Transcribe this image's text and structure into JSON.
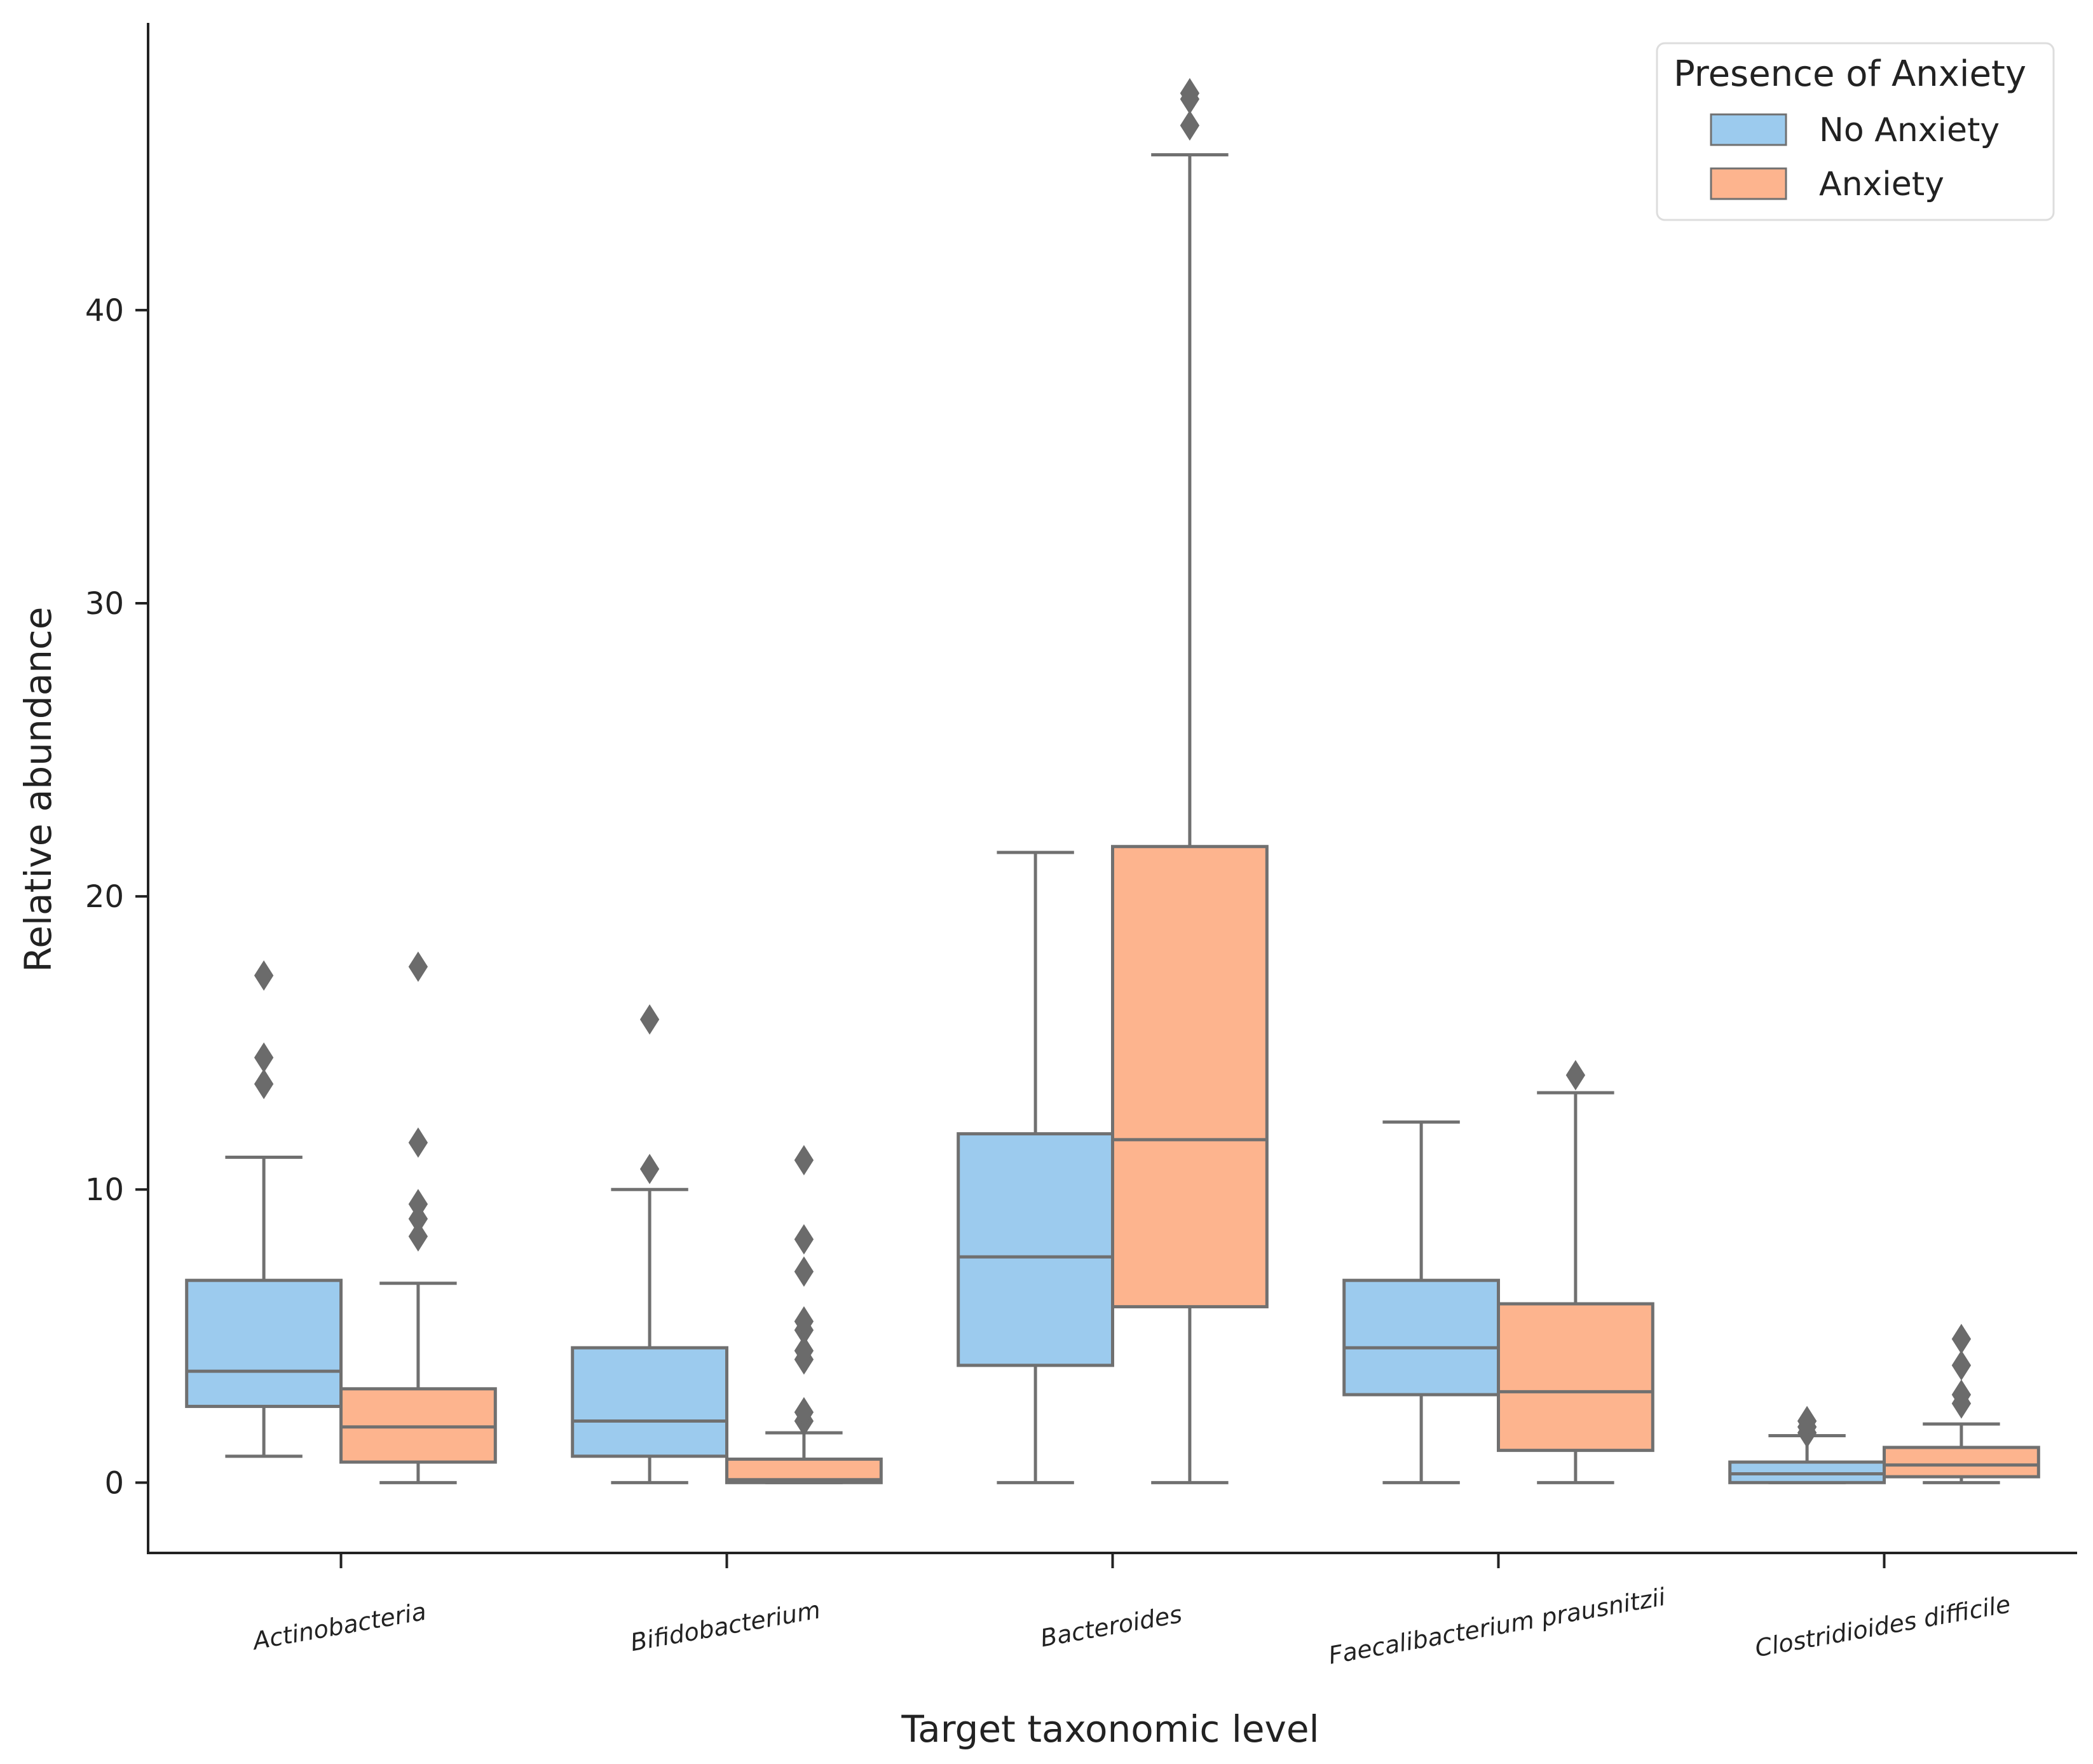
{
  "chart_data": {
    "type": "boxplot",
    "title": "",
    "xlabel": "Target taxonomic level",
    "ylabel": "Relative abundance",
    "ylim": [
      -2.4,
      49.8
    ],
    "yticks": [
      0,
      10,
      20,
      30,
      40
    ],
    "categories": [
      "Actinobacteria",
      "Bifidobacterium",
      "Bacteroides",
      "Faecalibacterium prausnitzii",
      "Clostridioides difficile"
    ],
    "legend": {
      "title": "Presence of Anxiety",
      "placement": "top-right"
    },
    "series": [
      {
        "name": "No Anxiety",
        "color": "#9ccbee",
        "boxes": [
          {
            "whisker_low": 0.9,
            "q1": 2.6,
            "median": 3.8,
            "q3": 6.9,
            "whisker_high": 11.1,
            "outliers": [
              13.6,
              14.5,
              17.3
            ]
          },
          {
            "whisker_low": 0.0,
            "q1": 0.9,
            "median": 2.1,
            "q3": 4.6,
            "whisker_high": 10.0,
            "outliers": [
              10.7,
              15.8
            ]
          },
          {
            "whisker_low": 0.0,
            "q1": 4.0,
            "median": 7.7,
            "q3": 11.9,
            "whisker_high": 21.5,
            "outliers": []
          },
          {
            "whisker_low": 0.0,
            "q1": 3.0,
            "median": 4.6,
            "q3": 6.9,
            "whisker_high": 12.3,
            "outliers": []
          },
          {
            "whisker_low": 0.0,
            "q1": 0.0,
            "median": 0.3,
            "q3": 0.7,
            "whisker_high": 1.6,
            "outliers": [
              1.7,
              1.9,
              2.1
            ]
          }
        ]
      },
      {
        "name": "Anxiety",
        "color": "#fdb48e",
        "boxes": [
          {
            "whisker_low": 0.0,
            "q1": 0.7,
            "median": 1.9,
            "q3": 3.2,
            "whisker_high": 6.8,
            "outliers": [
              8.4,
              9.0,
              9.5,
              11.6,
              17.6
            ]
          },
          {
            "whisker_low": 0.0,
            "q1": 0.0,
            "median": 0.1,
            "q3": 0.8,
            "whisker_high": 1.7,
            "outliers": [
              2.1,
              2.4,
              4.2,
              4.5,
              5.2,
              5.5,
              7.2,
              8.3,
              11.0
            ]
          },
          {
            "whisker_low": 0.0,
            "q1": 6.0,
            "median": 11.7,
            "q3": 21.7,
            "whisker_high": 45.3,
            "outliers": [
              46.3,
              47.2,
              47.4
            ]
          },
          {
            "whisker_low": 0.0,
            "q1": 1.1,
            "median": 3.1,
            "q3": 6.1,
            "whisker_high": 13.3,
            "outliers": [
              13.9
            ]
          },
          {
            "whisker_low": 0.0,
            "q1": 0.2,
            "median": 0.6,
            "q3": 1.2,
            "whisker_high": 2.0,
            "outliers": [
              2.7,
              3.0,
              4.0,
              4.9
            ]
          }
        ]
      }
    ]
  }
}
